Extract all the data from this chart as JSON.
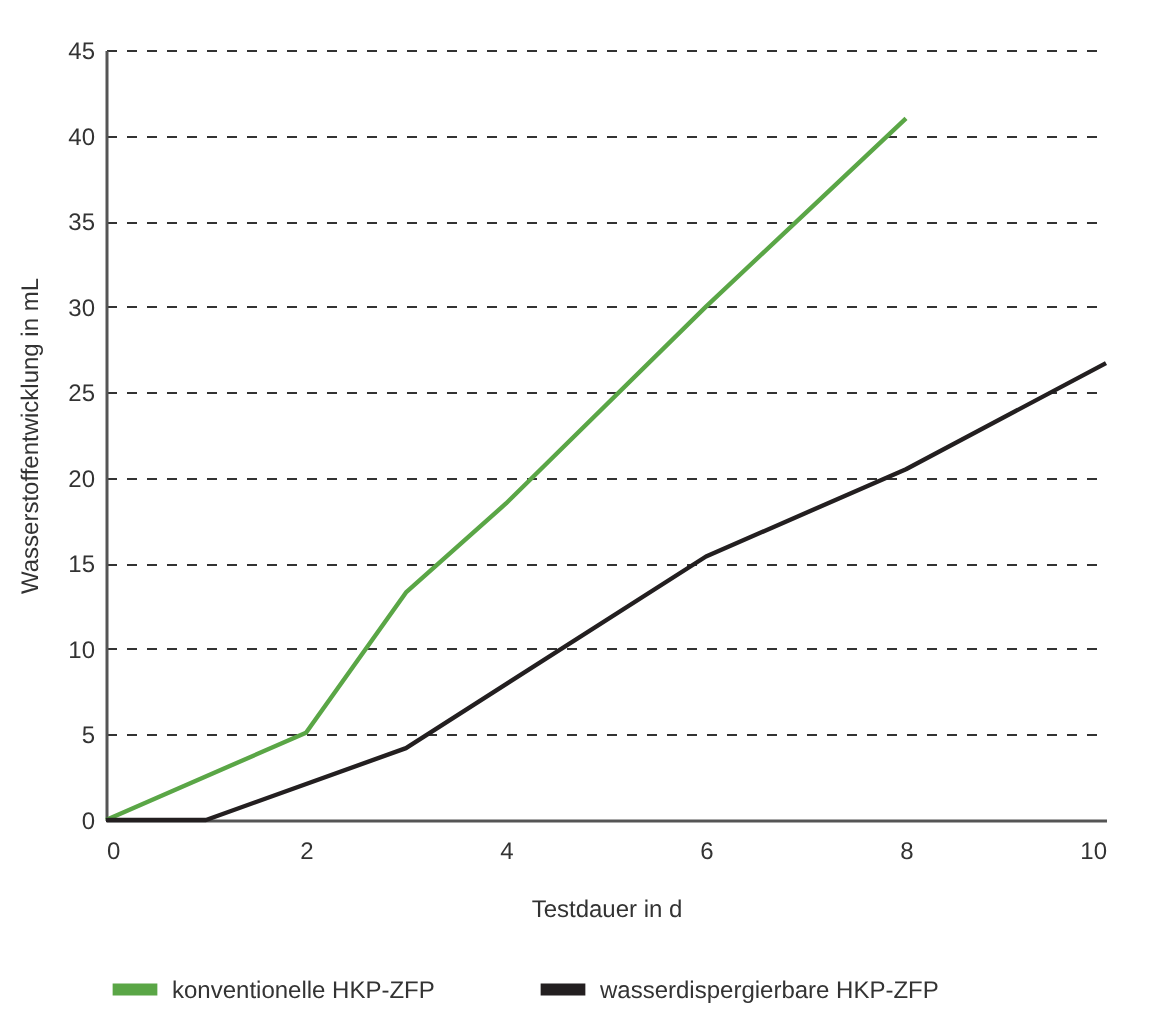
{
  "chart_data": {
    "type": "line",
    "xlabel": "Testdauer in d",
    "ylabel": "Wasserstoffentwicklung in mL",
    "xlim": [
      0,
      10
    ],
    "xticks": [
      0,
      2,
      4,
      6,
      8,
      10
    ],
    "ylim": [
      0,
      45
    ],
    "yticks": [
      0,
      5,
      10,
      15,
      20,
      25,
      30,
      35,
      40,
      45
    ],
    "grid": "y",
    "legend": "bottom",
    "line_style": "solid",
    "series": [
      {
        "name": "konventionelle HKP-ZFP",
        "color": "#5aa646",
        "x": [
          0,
          2,
          3,
          4,
          6,
          7,
          8
        ],
        "values": [
          0,
          5.1,
          13.3,
          18.5,
          30,
          35.5,
          41
        ]
      },
      {
        "name": "wasserdispergierbare HKP-ZFP",
        "color": "#231f20",
        "x": [
          0,
          1,
          3,
          6,
          8,
          10
        ],
        "values": [
          0,
          0,
          4.2,
          15.4,
          20.5,
          26.7
        ]
      }
    ]
  }
}
